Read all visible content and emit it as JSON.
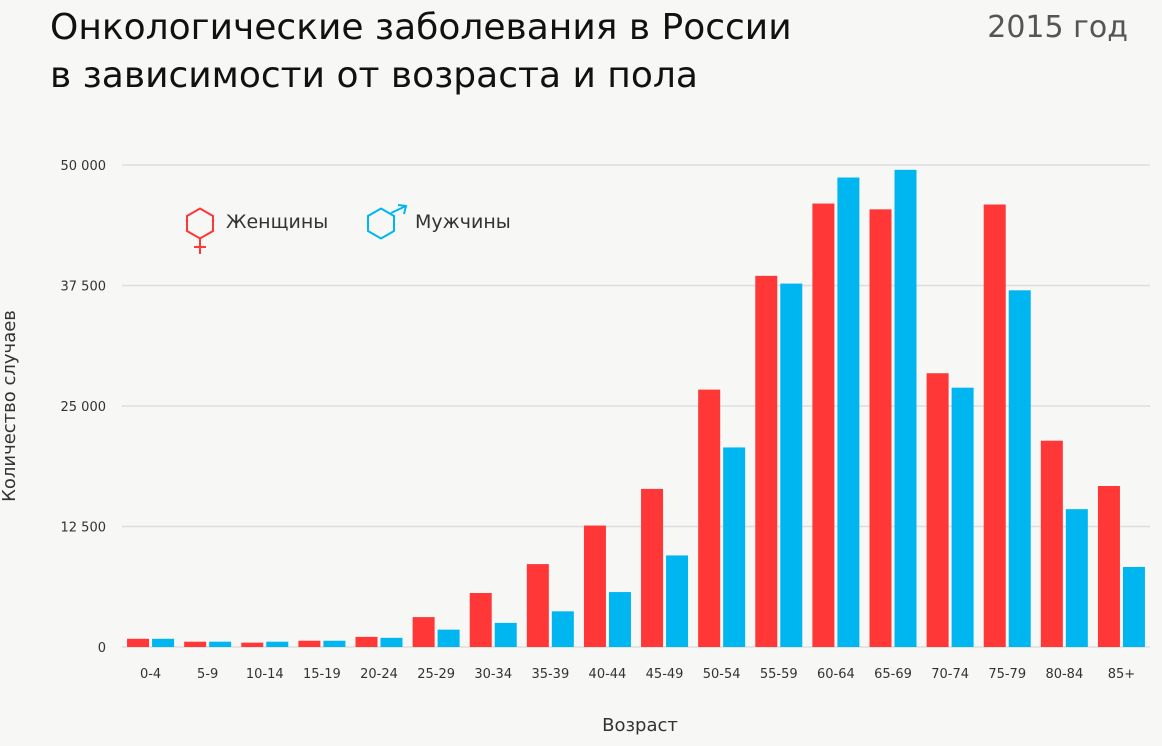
{
  "header": {
    "title_line1": "Онкологические заболевания в России",
    "title_line2": "в зависимости от возраста и пола",
    "year": "2015 год"
  },
  "legend": {
    "women_label": "Женщины",
    "men_label": "Мужчины",
    "women_icon": "female-symbol-icon",
    "men_icon": "male-symbol-icon"
  },
  "colors": {
    "women": "#ff3737",
    "men": "#00b6f1",
    "grid": "#dddddd",
    "background": "#f7f7f6"
  },
  "chart_data": {
    "type": "bar",
    "title": "Онкологические заболевания в России в зависимости от возраста и пола",
    "subtitle": "2015 год",
    "xlabel": "Возраст",
    "ylabel": "Количество случаев",
    "ylim": [
      0,
      50000
    ],
    "yticks": [
      0,
      12500,
      25000,
      37500,
      50000
    ],
    "ytick_labels": [
      "0",
      "12 500",
      "25 000",
      "37 500",
      "50 000"
    ],
    "grid": "horizontal",
    "legend_position": "top-left",
    "categories": [
      "0-4",
      "5-9",
      "10-14",
      "15-19",
      "20-24",
      "25-29",
      "30-34",
      "35-39",
      "40-44",
      "45-49",
      "50-54",
      "55-59",
      "60-64",
      "65-69",
      "70-74",
      "75-79",
      "80-84",
      "85+"
    ],
    "series": [
      {
        "name": "Женщины",
        "color": "#ff3737",
        "values": [
          850,
          550,
          450,
          650,
          1050,
          3100,
          5600,
          8600,
          12600,
          16400,
          26700,
          38500,
          46000,
          45400,
          28400,
          45900,
          21400,
          16700
        ]
      },
      {
        "name": "Мужчины",
        "color": "#00b6f1",
        "values": [
          850,
          550,
          550,
          650,
          950,
          1800,
          2500,
          3700,
          5700,
          9500,
          20700,
          37700,
          48700,
          49500,
          26900,
          37000,
          14300,
          8300
        ]
      }
    ]
  }
}
